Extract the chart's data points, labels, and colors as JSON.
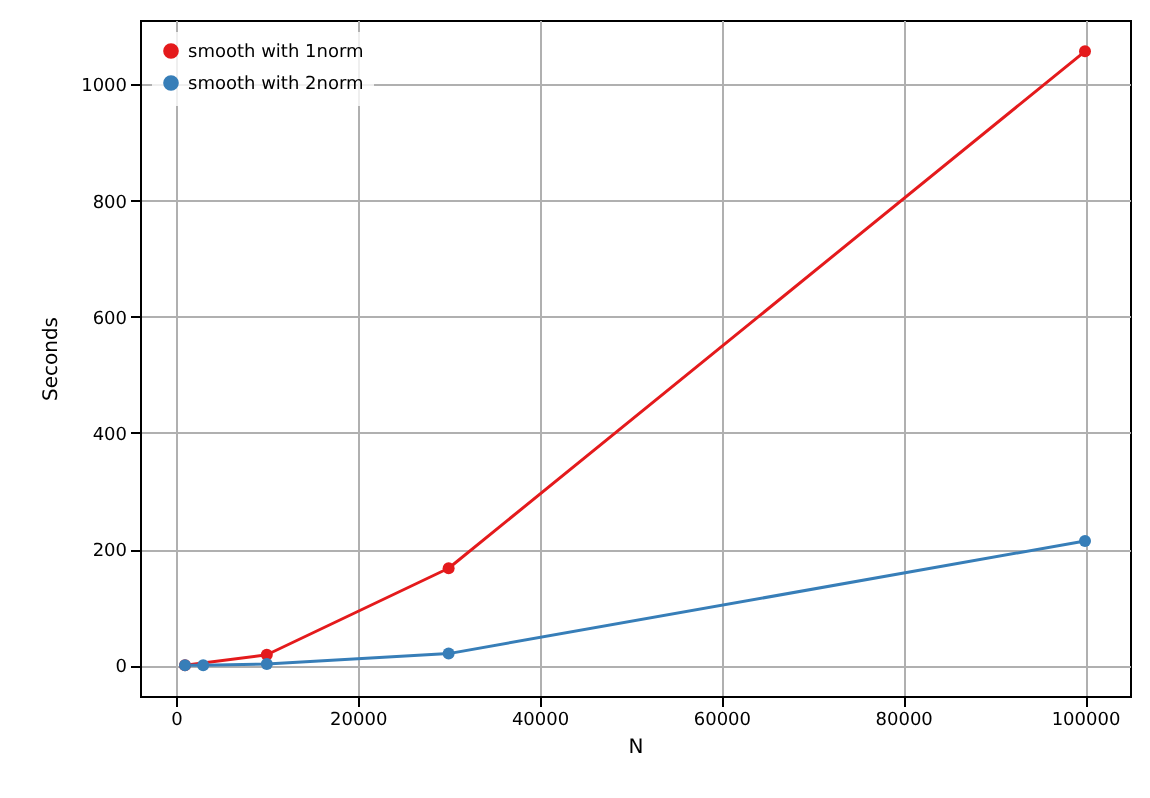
{
  "chart_data": {
    "type": "line",
    "xlabel": "N",
    "ylabel": "Seconds",
    "x": [
      1000,
      3000,
      10000,
      30000,
      100000
    ],
    "series": [
      {
        "name": "smooth with 1norm",
        "color": "#e41a1c",
        "values": [
          0,
          null,
          18,
          167,
          1057
        ]
      },
      {
        "name": "smooth with 2norm",
        "color": "#377eb8",
        "values": [
          0,
          0,
          2,
          20,
          214
        ]
      }
    ],
    "xlim": [
      -3950,
      104950
    ],
    "ylim": [
      -53,
      1111
    ],
    "xticks": [
      0,
      20000,
      40000,
      60000,
      80000,
      100000
    ],
    "yticks": [
      0,
      200,
      400,
      600,
      800,
      1000
    ],
    "grid": true,
    "legend": "top left",
    "marker": "circle",
    "line_style": "solid"
  }
}
